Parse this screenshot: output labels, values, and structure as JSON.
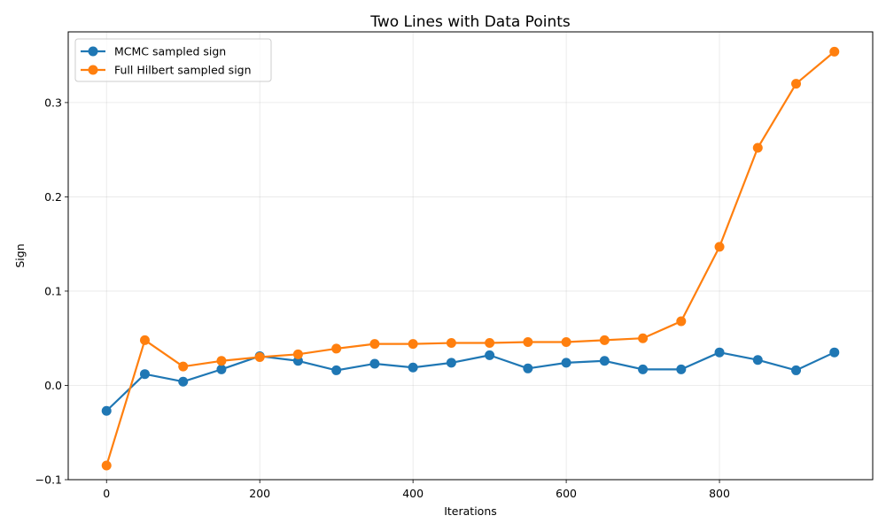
{
  "chart_data": {
    "type": "line",
    "title": "Two Lines with Data Points",
    "xlabel": "Iterations",
    "ylabel": "Sign",
    "xlim": [
      -50,
      1000
    ],
    "ylim": [
      -0.1,
      0.375
    ],
    "xticks": [
      0,
      200,
      400,
      600,
      800
    ],
    "xtick_labels": [
      "0",
      "200",
      "400",
      "600",
      "800"
    ],
    "yticks": [
      -0.1,
      0.0,
      0.1,
      0.2,
      0.3
    ],
    "ytick_labels": [
      "−0.1",
      "0.0",
      "0.1",
      "0.2",
      "0.3"
    ],
    "grid": true,
    "legend_position": "top-left",
    "x": [
      0,
      50,
      100,
      150,
      200,
      250,
      300,
      350,
      400,
      450,
      500,
      550,
      600,
      650,
      700,
      750,
      800,
      850,
      900,
      950
    ],
    "series": [
      {
        "name": "MCMC sampled sign",
        "color": "#1f77b4",
        "values": [
          -0.027,
          0.012,
          0.004,
          0.017,
          0.031,
          0.026,
          0.016,
          0.023,
          0.019,
          0.024,
          0.032,
          0.018,
          0.024,
          0.026,
          0.017,
          0.017,
          0.035,
          0.027,
          0.016,
          0.035
        ]
      },
      {
        "name": "Full Hilbert sampled sign",
        "color": "#ff7f0e",
        "values": [
          -0.085,
          0.048,
          0.02,
          0.026,
          0.03,
          0.033,
          0.039,
          0.044,
          0.044,
          0.045,
          0.045,
          0.046,
          0.046,
          0.048,
          0.05,
          0.068,
          0.147,
          0.252,
          0.32,
          0.354
        ]
      }
    ]
  }
}
